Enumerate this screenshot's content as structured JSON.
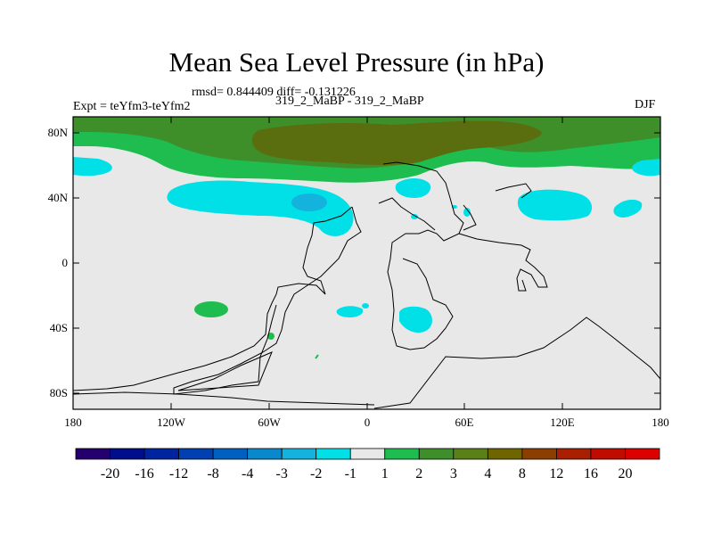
{
  "title": "Mean Sea Level Pressure (in hPa)",
  "stats": "rmsd= 0.844409 diff= -0.131226",
  "expt": "Expt = teYfm3-teYfm2",
  "runs": "319_2_MaBP - 319_2_MaBP",
  "season": "DJF",
  "lat_ticks": [
    "80N",
    "40N",
    "0",
    "40S",
    "80S"
  ],
  "lon_ticks": [
    "180",
    "120W",
    "60W",
    "0",
    "60E",
    "120E",
    "180"
  ],
  "colorbar": {
    "labels": [
      "-20",
      "-16",
      "-12",
      "-8",
      "-4",
      "-3",
      "-2",
      "-1",
      "1",
      "2",
      "3",
      "4",
      "8",
      "12",
      "16",
      "20"
    ],
    "colors": [
      "#24006e",
      "#000e8c",
      "#0024a0",
      "#0040b0",
      "#0060c0",
      "#0a88cc",
      "#13b3dd",
      "#00e0e6",
      "#e8e8e8",
      "#1fbd50",
      "#3e8f2a",
      "#5a8018",
      "#6e6400",
      "#8c3e00",
      "#a82000",
      "#c00c00",
      "#dc0000"
    ]
  },
  "colors": {
    "land_bg": "#e8e8e8",
    "cyan": "#00e0e6",
    "blue": "#13b3dd",
    "green": "#1fbd50",
    "dkgreen": "#3e8f2a",
    "olive": "#6e6400",
    "olive2": "#5a8018"
  }
}
